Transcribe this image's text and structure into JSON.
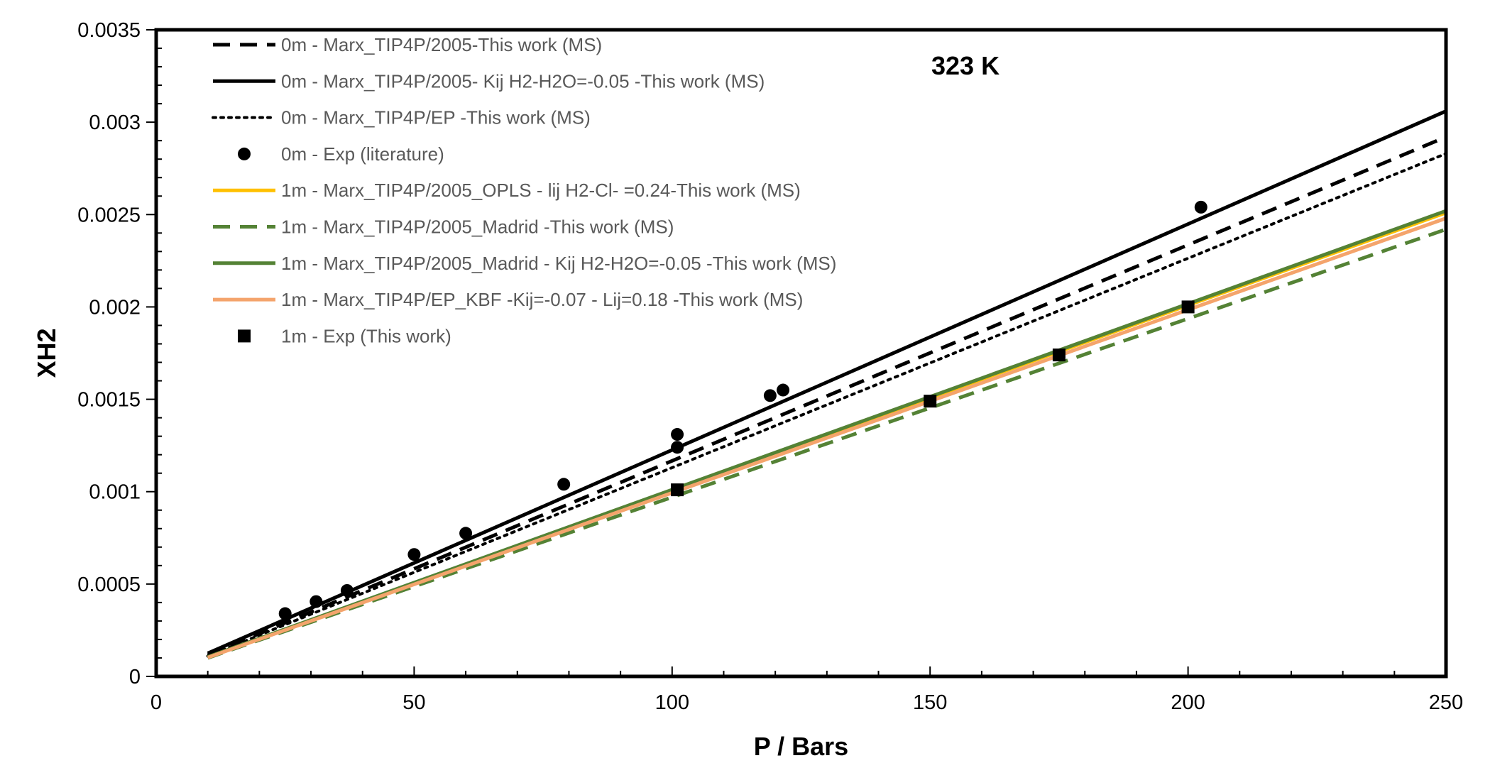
{
  "chart_data": {
    "type": "scatter",
    "annotation": "323 K",
    "xlabel": "P / Bars",
    "ylabel": "XH2",
    "xlim": [
      0,
      250
    ],
    "ylim": [
      0,
      0.0035
    ],
    "x_ticks": [
      0,
      50,
      100,
      150,
      200,
      250
    ],
    "y_ticks": [
      0,
      0.0005,
      0.001,
      0.0015,
      0.002,
      0.0025,
      0.003,
      0.0035
    ],
    "x_tick_labels": [
      "0",
      "50",
      "100",
      "150",
      "200",
      "250"
    ],
    "y_tick_labels": [
      "0",
      "0.0005",
      "0.001",
      "0.0015",
      "0.002",
      "0.0025",
      "0.003",
      "0.0035"
    ],
    "grid": false,
    "legend_position": "top-left",
    "series": [
      {
        "name": "0m - Marx_TIP4P/2005-This work (MS)",
        "kind": "line",
        "style": "dashed",
        "color": "#000000",
        "x": [
          10,
          250
        ],
        "y": [
          0.000115,
          0.00292
        ]
      },
      {
        "name": "0m - Marx_TIP4P/2005- Kij H2-H2O=-0.05 -This work (MS)",
        "kind": "line",
        "style": "solid",
        "color": "#000000",
        "x": [
          10,
          250
        ],
        "y": [
          0.000125,
          0.00306
        ]
      },
      {
        "name": "0m - Marx_TIP4P/EP -This work (MS)",
        "kind": "line",
        "style": "dotted",
        "color": "#000000",
        "x": [
          10,
          250
        ],
        "y": [
          0.00011,
          0.00283
        ]
      },
      {
        "name": "0m - Exp (literature)",
        "kind": "marker",
        "marker": "circle",
        "color": "#000000",
        "x": [
          25,
          31,
          37,
          50,
          60,
          79,
          101,
          101,
          119,
          121.5,
          202.5
        ],
        "y": [
          0.00034,
          0.000405,
          0.000465,
          0.00066,
          0.000775,
          0.00104,
          0.00131,
          0.00124,
          0.00152,
          0.00155,
          0.00254
        ]
      },
      {
        "name": "1m - Marx_TIP4P/2005_OPLS - lij H2-Cl- =0.24-This work (MS)",
        "kind": "line",
        "style": "solid",
        "color": "#FFC000",
        "x": [
          10,
          250
        ],
        "y": [
          0.000105,
          0.00251
        ]
      },
      {
        "name": "1m - Marx_TIP4P/2005_Madrid -This work (MS)",
        "kind": "line",
        "style": "dashed",
        "color": "#548235",
        "x": [
          10,
          250
        ],
        "y": [
          0.0001,
          0.00242
        ]
      },
      {
        "name": "1m - Marx_TIP4P/2005_Madrid - Kij H2-H2O=-0.05 -This work (MS)",
        "kind": "line",
        "style": "solid",
        "color": "#548235",
        "x": [
          10,
          250
        ],
        "y": [
          0.000105,
          0.00252
        ]
      },
      {
        "name": "1m - Marx_TIP4P/EP_KBF -Kij=-0.07 - Lij=0.18 -This work (MS)",
        "kind": "line",
        "style": "solid",
        "color": "#F4A46C",
        "x": [
          10,
          250
        ],
        "y": [
          0.000102,
          0.00248
        ]
      },
      {
        "name": "1m - Exp (This work)",
        "kind": "marker",
        "marker": "square",
        "color": "#000000",
        "x": [
          101,
          150,
          175,
          200
        ],
        "y": [
          0.00101,
          0.00149,
          0.00174,
          0.002
        ]
      }
    ]
  }
}
